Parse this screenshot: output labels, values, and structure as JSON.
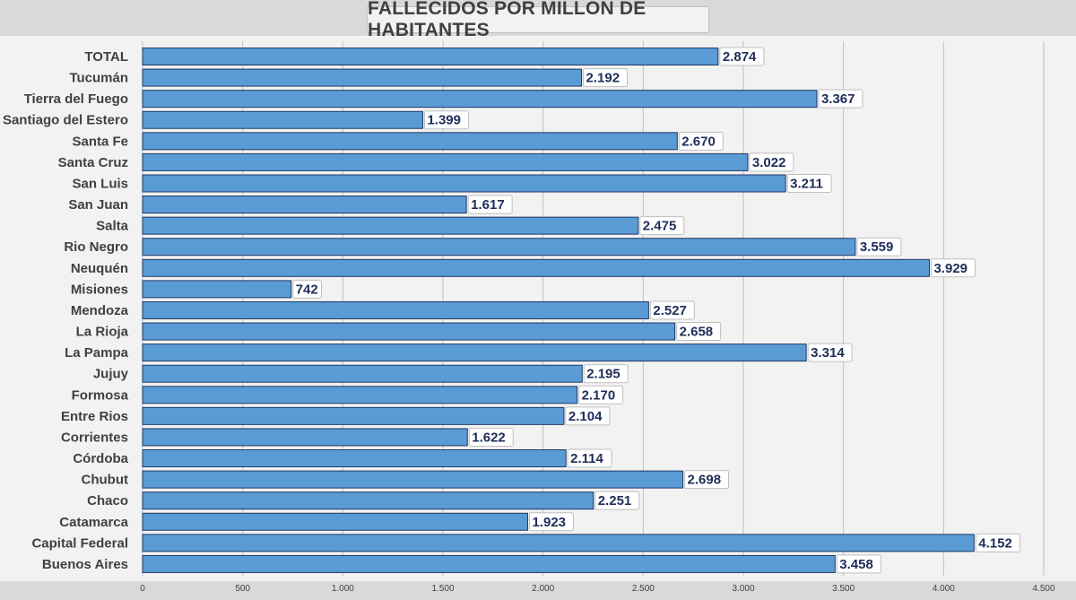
{
  "chart_data": {
    "type": "bar",
    "orientation": "horizontal",
    "title": "FALLECIDOS POR MILLÓN DE HABITANTES",
    "categories": [
      "TOTAL",
      "Tucumán",
      "Tierra del Fuego",
      "Santiago del Estero",
      "Santa Fe",
      "Santa Cruz",
      "San Luis",
      "San Juan",
      "Salta",
      "Rio Negro",
      "Neuquén",
      "Misiones",
      "Mendoza",
      "La Rioja",
      "La Pampa",
      "Jujuy",
      "Formosa",
      "Entre Rios",
      "Corrientes",
      "Córdoba",
      "Chubut",
      "Chaco",
      "Catamarca",
      "Capital Federal",
      "Buenos Aires"
    ],
    "values": [
      2874,
      2192,
      3367,
      1399,
      2670,
      3022,
      3211,
      1617,
      2475,
      3559,
      3929,
      742,
      2527,
      2658,
      3314,
      2195,
      2170,
      2104,
      1622,
      2114,
      2698,
      2251,
      1923,
      4152,
      3458
    ],
    "value_labels": [
      "2.874",
      "2.192",
      "3.367",
      "1.399",
      "2.670",
      "3.022",
      "3.211",
      "1.617",
      "2.475",
      "3.559",
      "3.929",
      "742",
      "2.527",
      "2.658",
      "3.314",
      "2.195",
      "2.170",
      "2.104",
      "1.622",
      "2.114",
      "2.698",
      "2.251",
      "1.923",
      "4.152",
      "3.458"
    ],
    "x_ticks": [
      0,
      500,
      1000,
      1500,
      2000,
      2500,
      3000,
      3500,
      4000,
      4500
    ],
    "x_tick_labels": [
      "0",
      "500",
      "1.000",
      "1.500",
      "2.000",
      "2.500",
      "3.000",
      "3.500",
      "4.000",
      "4.500"
    ],
    "xlim": [
      0,
      4500
    ],
    "xlabel": "",
    "ylabel": "",
    "grid": "vertical",
    "legend": "none",
    "colors": {
      "bar": "#5b9bd5",
      "bar_border": "#1f3864",
      "plot_background": "#f2f2f2",
      "page_background": "#d9d9d9",
      "grid": "#bfbfbf",
      "label": "#404040",
      "data_label": "#1f2d5a"
    }
  }
}
